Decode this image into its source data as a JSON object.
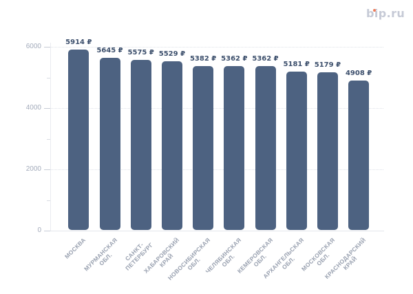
{
  "logo": {
    "text": "bip.ru",
    "color": "#c6cad6",
    "dot_color": "#ee7b59"
  },
  "chart_data": {
    "type": "bar",
    "categories": [
      "МОСКВА",
      "МУРМАНСКАЯ ОБЛ.",
      "САНКТ-ПЕТЕРБУРГ",
      "ХАБАРОВСКИЙ КРАЙ",
      "НОВОСИБИРСКАЯ ОБЛ.",
      "ЧЕЛЯБИНСКАЯ ОБЛ.",
      "КЕМЕРОВСКАЯ ОБЛ.",
      "АРХАНГЕЛЬСКАЯ ОБЛ.",
      "МОСКОВСКАЯ ОБЛ.",
      "КРАСНОДАРСКИЙ КРАЙ"
    ],
    "category_lines": [
      [
        "МОСКВА"
      ],
      [
        "МУРМАНСКАЯ",
        "ОБЛ."
      ],
      [
        "САНКТ-",
        "ПЕТЕРБУРГ"
      ],
      [
        "ХАБАРОВСКИЙ",
        "КРАЙ"
      ],
      [
        "НОВОСИБИРСКАЯ",
        "ОБЛ."
      ],
      [
        "ЧЕЛЯБИНСКАЯ",
        "ОБЛ."
      ],
      [
        "КЕМЕРОВСКАЯ",
        "ОБЛ."
      ],
      [
        "АРХАНГЕЛЬСКАЯ",
        "ОБЛ."
      ],
      [
        "МОСКОВСКАЯ",
        "ОБЛ."
      ],
      [
        "КРАСНОДАРСКИЙ",
        "КРАЙ"
      ]
    ],
    "values": [
      5914,
      5645,
      5575,
      5529,
      5382,
      5362,
      5362,
      5181,
      5179,
      4908
    ],
    "value_labels": [
      "5914 ₽",
      "5645 ₽",
      "5575 ₽",
      "5529 ₽",
      "5382 ₽",
      "5362 ₽",
      "5362 ₽",
      "5181 ₽",
      "5179 ₽",
      "4908 ₽"
    ],
    "unit": "₽",
    "ylim": [
      0,
      6000
    ],
    "yticks_major": [
      0,
      2000,
      4000,
      6000
    ],
    "ytick_labels": [
      "0",
      "2000",
      "4000",
      "6000"
    ],
    "yticks_minor": [
      1000,
      3000,
      5000
    ],
    "grid": "horizontal-dotted",
    "legend": "none",
    "bar_color": "#4d6281",
    "value_label_color": "#3b4e6b",
    "axis_label_color": "#a3abbb",
    "category_label_color": "#99a1b0"
  }
}
